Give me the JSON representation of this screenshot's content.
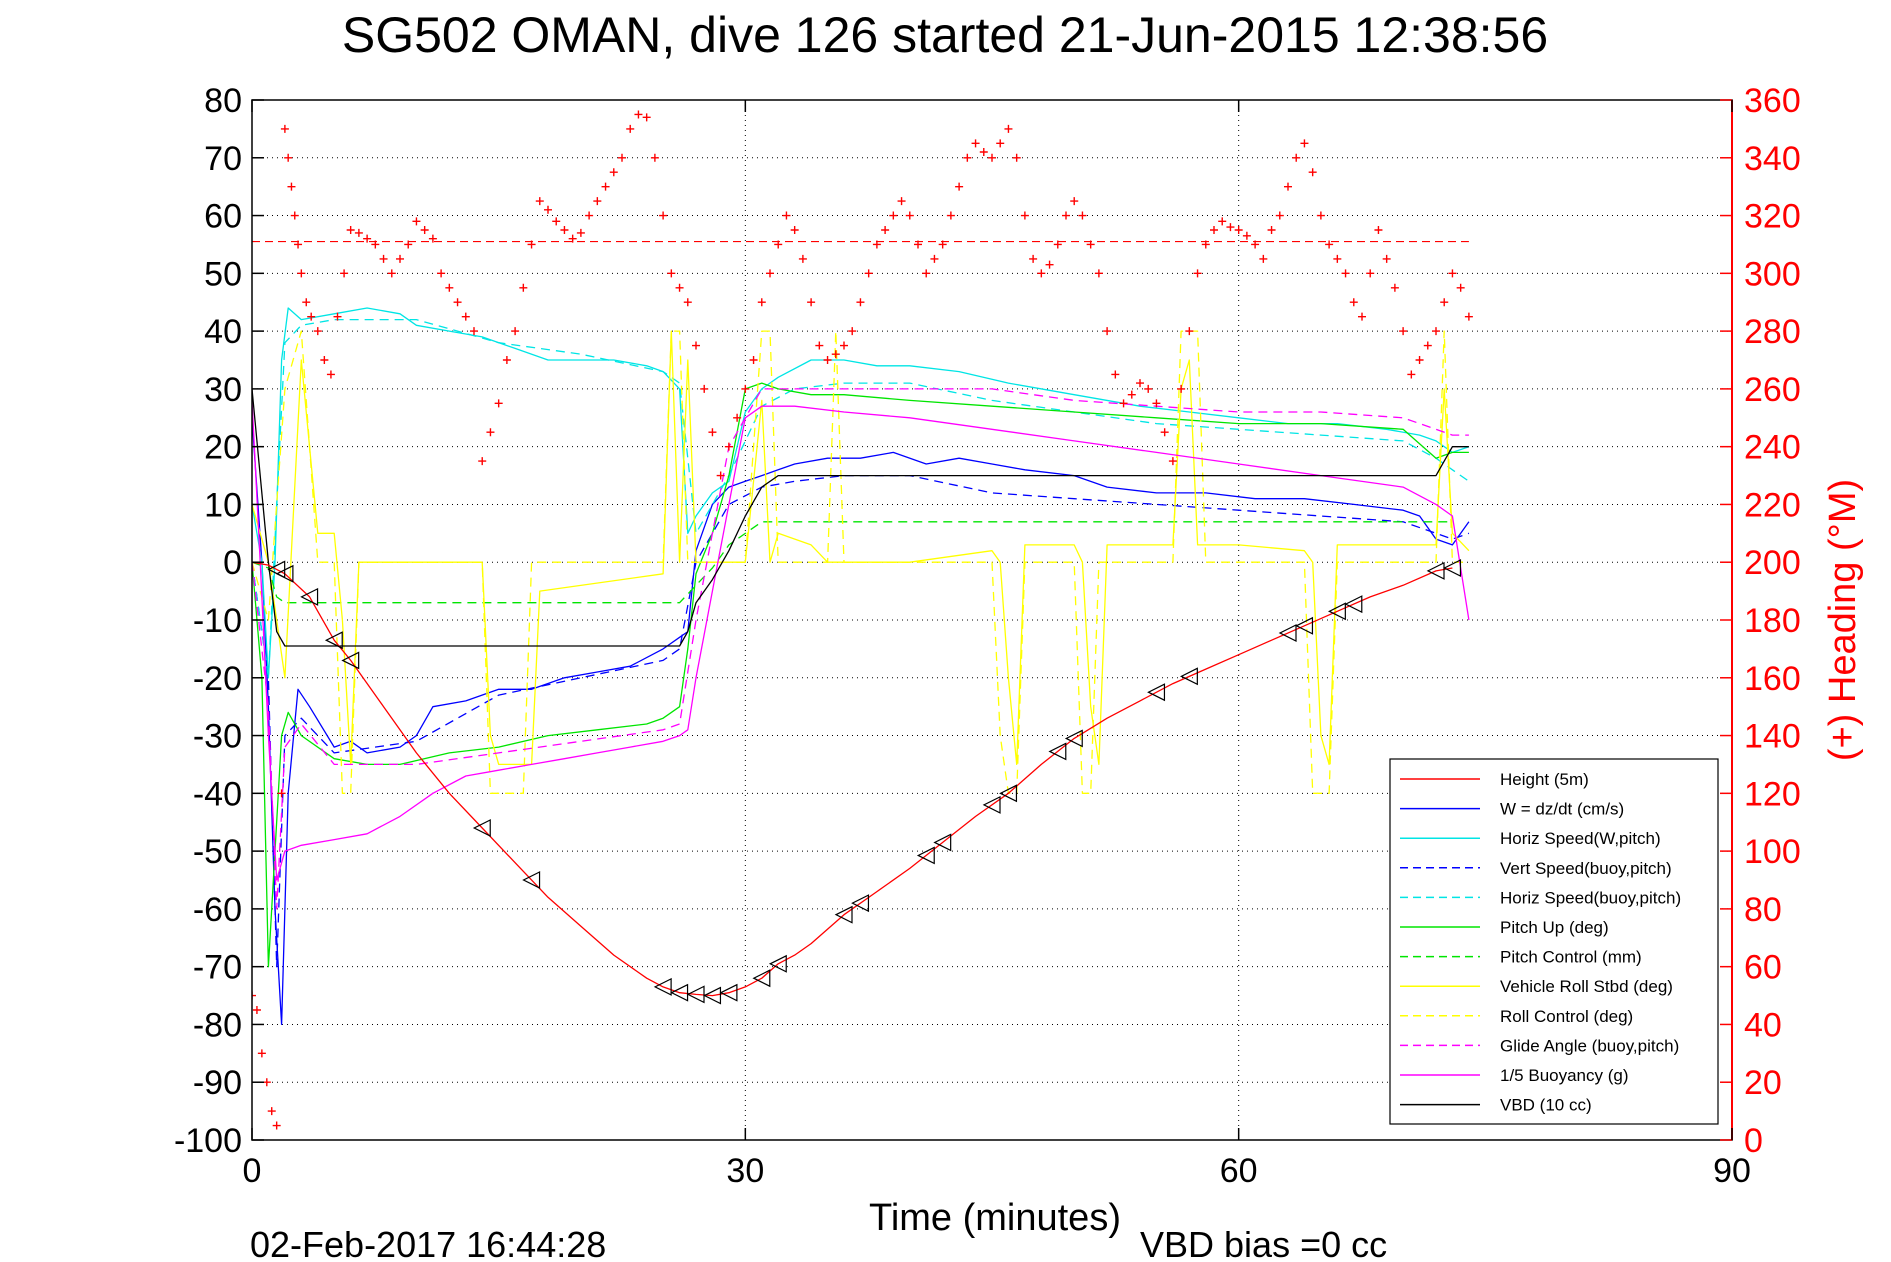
{
  "chart_data": {
    "type": "line",
    "title": "SG502 OMAN, dive 126 started 21-Jun-2015 12:38:56",
    "xlabel": "Time (minutes)",
    "ylabel_right": "(+) Heading (°M)",
    "xlim": [
      0,
      90
    ],
    "ylim": [
      -100,
      80
    ],
    "ylim_right": [
      0,
      360
    ],
    "x_ticks": [
      0,
      30,
      60,
      90
    ],
    "y_ticks": [
      80,
      70,
      60,
      50,
      40,
      30,
      20,
      10,
      0,
      -10,
      -20,
      -30,
      -40,
      -50,
      -60,
      -70,
      -80,
      -90,
      -100
    ],
    "y_ticks_right": [
      360,
      340,
      320,
      300,
      280,
      260,
      240,
      220,
      200,
      180,
      160,
      140,
      120,
      100,
      80,
      60,
      40,
      20,
      0
    ],
    "grid": true,
    "legend_position": "bottom-right",
    "footer_left": "02-Feb-2017 16:44:28",
    "footer_right": "VBD bias =0 cc",
    "heading_reference": 311,
    "series": [
      {
        "name": "Height (5m)",
        "color": "#ff0000",
        "style": "solid",
        "x": [
          0,
          1,
          2,
          3.5,
          5,
          6,
          8,
          10,
          12,
          14,
          16,
          18,
          20,
          22,
          24,
          25,
          26,
          27,
          28,
          29,
          30,
          31,
          32,
          33,
          34,
          36,
          38,
          40,
          42,
          44,
          46,
          48,
          50,
          52,
          54,
          56,
          58,
          60,
          62,
          64,
          66,
          68,
          70,
          72,
          73
        ],
        "values": [
          0,
          -0.5,
          -2,
          -6,
          -13.5,
          -17,
          -25,
          -33,
          -40,
          -46,
          -52,
          -58,
          -63,
          -68,
          -72,
          -73.5,
          -74.5,
          -74.8,
          -75,
          -74.5,
          -73.5,
          -72,
          -69.5,
          -68,
          -66,
          -61,
          -57,
          -53,
          -48.5,
          -44,
          -40,
          -35,
          -30.5,
          -27,
          -24,
          -21,
          -18.5,
          -16,
          -13.5,
          -11,
          -8.5,
          -6,
          -4,
          -1.5,
          -1
        ]
      },
      {
        "name": "W = dz/dt (cm/s)",
        "color": "#0000ff",
        "style": "solid",
        "x": [
          0,
          0.6,
          1.0,
          1.4,
          1.8,
          2.2,
          2.8,
          3.5,
          5,
          6,
          7,
          9,
          10,
          11,
          13,
          15,
          17,
          19,
          21,
          23,
          25,
          26,
          26.5,
          27,
          28,
          29,
          30,
          31,
          32,
          33,
          35,
          37,
          39,
          41,
          43,
          45,
          47,
          50,
          52,
          55,
          58,
          61,
          64,
          67,
          70,
          71,
          72,
          73,
          74
        ],
        "values": [
          25,
          0,
          -25,
          -60,
          -80,
          -40,
          -22,
          -25,
          -32,
          -31,
          -33,
          -32,
          -30,
          -25,
          -24,
          -22,
          -22,
          -20,
          -19,
          -18,
          -15,
          -13,
          -12,
          2,
          10,
          13,
          14,
          15,
          16,
          17,
          18,
          18,
          19,
          17,
          18,
          17,
          16,
          15,
          13,
          12,
          12,
          11,
          11,
          10,
          9,
          8,
          4,
          3,
          7
        ]
      },
      {
        "name": "Horiz Speed(W,pitch)",
        "color": "#00e5e5",
        "style": "solid",
        "x": [
          0,
          0.6,
          1.0,
          1.4,
          1.8,
          2.2,
          3,
          5,
          7,
          9,
          10,
          12,
          14,
          16,
          18,
          20,
          22,
          24,
          25,
          26,
          26.5,
          27,
          28,
          29,
          30,
          31,
          32,
          34,
          36,
          38,
          40,
          43,
          46,
          50,
          54,
          57,
          60,
          63,
          66,
          69,
          71,
          72,
          73,
          74
        ],
        "values": [
          10,
          0,
          -20,
          0,
          35,
          44,
          42,
          43,
          44,
          43,
          41,
          40,
          39,
          37,
          35,
          35,
          35,
          34,
          33,
          30,
          5,
          8,
          12,
          14,
          26,
          30,
          32,
          35,
          35,
          34,
          34,
          33,
          31,
          29,
          27,
          26,
          25,
          24,
          24,
          23,
          22,
          21,
          19,
          20
        ]
      },
      {
        "name": "Vert Speed(buoy,pitch)",
        "color": "#0000ff",
        "style": "dashed",
        "x": [
          0,
          1,
          1.5,
          2,
          3,
          5,
          10,
          15,
          20,
          25,
          26,
          27,
          29,
          31,
          33,
          36,
          40,
          45,
          50,
          55,
          60,
          65,
          70,
          72,
          73,
          74
        ],
        "values": [
          0,
          -20,
          -70,
          -30,
          -27,
          -33,
          -31,
          -23,
          -20,
          -17,
          -15,
          0,
          10,
          13,
          14,
          15,
          15,
          12,
          11,
          10,
          9,
          8,
          7,
          5,
          4,
          5
        ]
      },
      {
        "name": "Horiz Speed(buoy,pitch)",
        "color": "#00e5e5",
        "style": "dashed",
        "x": [
          0,
          1,
          1.5,
          2,
          3,
          5,
          10,
          15,
          20,
          25,
          26,
          27,
          29,
          31,
          33,
          36,
          40,
          45,
          50,
          55,
          60,
          65,
          70,
          72,
          73,
          74
        ],
        "values": [
          0,
          -20,
          10,
          38,
          41,
          42,
          42,
          38,
          36,
          33,
          31,
          5,
          15,
          27,
          30,
          31,
          31,
          28,
          26,
          24,
          23,
          22,
          21,
          18,
          16,
          14
        ]
      },
      {
        "name": "Pitch Up (deg)",
        "color": "#00e500",
        "style": "solid",
        "x": [
          0,
          0.6,
          1.0,
          1.4,
          1.8,
          2.2,
          3,
          5,
          7,
          9,
          12,
          15,
          18,
          21,
          24,
          25,
          26,
          26.5,
          27,
          28,
          29,
          30,
          31,
          32,
          34,
          36,
          40,
          45,
          50,
          55,
          60,
          65,
          70,
          72,
          73,
          74
        ],
        "values": [
          0,
          -20,
          -70,
          -50,
          -30,
          -26,
          -30,
          -34,
          -35,
          -35,
          -33,
          -32,
          -30,
          -29,
          -28,
          -27,
          -25,
          -15,
          -2,
          5,
          15,
          30,
          31,
          30,
          29,
          29,
          28,
          27,
          26,
          25,
          24,
          24,
          23,
          18,
          19,
          19
        ]
      },
      {
        "name": "Pitch Control (mm)",
        "color": "#00e500",
        "style": "dashed",
        "x": [
          0,
          1,
          1.5,
          2,
          3,
          26,
          27,
          28,
          29,
          31,
          32,
          50,
          73
        ],
        "values": [
          0,
          -1,
          -6,
          -7,
          -7,
          -7,
          -4,
          -1,
          3,
          7,
          7,
          7,
          7
        ]
      },
      {
        "name": "Vehicle Roll Stbd (deg)",
        "color": "#ffff00",
        "style": "solid",
        "x": [
          0,
          1,
          2,
          3,
          4,
          5,
          5.5,
          6,
          6.5,
          14,
          14.5,
          15,
          16,
          17,
          17.5,
          25,
          25.5,
          26,
          26.5,
          27,
          28,
          30,
          31,
          31.5,
          32,
          34,
          35,
          36,
          40,
          45,
          45.5,
          46,
          46.5,
          47,
          50,
          50.5,
          51,
          51.5,
          52,
          56,
          56.5,
          57,
          57.5,
          58,
          60,
          64,
          64.5,
          65,
          65.5,
          66,
          70,
          72,
          72.5,
          73,
          74
        ],
        "values": [
          10,
          0,
          -20,
          35,
          5,
          5,
          -10,
          -35,
          0,
          0,
          -30,
          -35,
          -35,
          -35,
          -5,
          -2,
          40,
          0,
          35,
          0,
          0,
          0,
          28,
          0,
          5,
          3,
          0,
          0,
          0,
          2,
          0,
          -20,
          -35,
          3,
          3,
          0,
          -25,
          -35,
          3,
          3,
          30,
          35,
          3,
          3,
          3,
          2,
          0,
          -30,
          -35,
          3,
          3,
          3,
          30,
          5,
          2
        ]
      },
      {
        "name": "Roll Control (deg)",
        "color": "#ffff00",
        "style": "dashed",
        "x": [
          0,
          1,
          2,
          3,
          4,
          5,
          5.5,
          6,
          6.5,
          14,
          14.5,
          15,
          16.5,
          17,
          25,
          25.5,
          26,
          26.5,
          27,
          30,
          31,
          31.5,
          32,
          35,
          35.5,
          36,
          45,
          45.5,
          46,
          46.5,
          47,
          50,
          50.5,
          51,
          51.5,
          52,
          56,
          56.5,
          57,
          57.5,
          58,
          64,
          64.5,
          65,
          65.5,
          66,
          70,
          72,
          72.5,
          73,
          74
        ],
        "values": [
          0,
          -10,
          30,
          40,
          0,
          0,
          -40,
          -40,
          0,
          0,
          -40,
          -40,
          -40,
          0,
          0,
          40,
          40,
          0,
          0,
          0,
          40,
          40,
          0,
          0,
          40,
          0,
          0,
          -30,
          -40,
          -40,
          0,
          0,
          -40,
          -40,
          0,
          0,
          0,
          40,
          40,
          40,
          0,
          0,
          -40,
          -40,
          -40,
          0,
          0,
          0,
          40,
          0,
          0
        ]
      },
      {
        "name": "Glide Angle (buoy,pitch)",
        "color": "#ff00ff",
        "style": "dashed",
        "x": [
          0,
          1,
          1.5,
          2,
          3,
          5,
          10,
          15,
          20,
          25,
          26,
          27,
          28,
          29,
          31,
          33,
          36,
          40,
          45,
          50,
          55,
          60,
          65,
          70,
          72,
          73,
          74
        ],
        "values": [
          0,
          -25,
          -60,
          -32,
          -28,
          -35,
          -35,
          -33,
          -31,
          -29,
          -28,
          -10,
          5,
          20,
          30,
          30,
          30,
          30,
          30,
          28,
          27,
          26,
          26,
          25,
          23,
          22,
          22
        ]
      },
      {
        "name": "1/5 Buoyancy (g)",
        "color": "#ff00ff",
        "style": "solid",
        "x": [
          0,
          0.5,
          1,
          1.5,
          2,
          3,
          5,
          7,
          9,
          11,
          13,
          15,
          17,
          19,
          21,
          23,
          25,
          26,
          26.5,
          27,
          28,
          29,
          30,
          31,
          33,
          36,
          40,
          45,
          50,
          55,
          60,
          65,
          70,
          72,
          73,
          74
        ],
        "values": [
          28,
          0,
          -30,
          -55,
          -50,
          -49,
          -48,
          -47,
          -44,
          -40,
          -37,
          -36,
          -35,
          -34,
          -33,
          -32,
          -31,
          -30,
          -29,
          -20,
          -5,
          10,
          25,
          27,
          27,
          26,
          25,
          23,
          21,
          19,
          17,
          15,
          13,
          10,
          8,
          -10
        ]
      },
      {
        "name": "VBD (10 cc)",
        "color": "#000000",
        "style": "solid",
        "x": [
          0,
          1,
          1.5,
          2,
          10,
          20,
          26,
          26.5,
          27,
          28,
          29,
          30,
          31,
          32,
          40,
          50,
          60,
          70,
          72,
          73,
          74
        ],
        "values": [
          30,
          0,
          -12,
          -14.5,
          -14.5,
          -14.5,
          -14.5,
          -12,
          -7,
          -3,
          2,
          8,
          13,
          15,
          15,
          15,
          15,
          15,
          15,
          20,
          20
        ]
      }
    ],
    "heading_points": {
      "name": "(+) Heading",
      "color": "#ff0000",
      "x": [
        0,
        0.3,
        0.6,
        0.9,
        1.2,
        1.5,
        1.8,
        2.0,
        2.2,
        2.4,
        2.6,
        2.8,
        3.0,
        3.3,
        3.6,
        4.0,
        4.4,
        4.8,
        5.2,
        5.6,
        6.0,
        6.5,
        7.0,
        7.5,
        8.0,
        8.5,
        9.0,
        9.5,
        10.0,
        10.5,
        11.0,
        11.5,
        12.0,
        12.5,
        13.0,
        13.5,
        14.0,
        14.5,
        15.0,
        15.5,
        16.0,
        16.5,
        17.0,
        17.5,
        18.0,
        18.5,
        19.0,
        19.5,
        20.0,
        20.5,
        21.0,
        21.5,
        22.0,
        22.5,
        23.0,
        23.5,
        24.0,
        24.5,
        25.0,
        25.5,
        26.0,
        26.5,
        27.0,
        27.5,
        28.0,
        28.5,
        29.0,
        29.5,
        30.0,
        30.5,
        31.0,
        31.5,
        32.0,
        32.5,
        33.0,
        33.5,
        34.0,
        34.5,
        35.0,
        35.5,
        36.0,
        36.5,
        37.0,
        37.5,
        38.0,
        38.5,
        39.0,
        39.5,
        40.0,
        40.5,
        41.0,
        41.5,
        42.0,
        42.5,
        43.0,
        43.5,
        44.0,
        44.5,
        45.0,
        45.5,
        46.0,
        46.5,
        47.0,
        47.5,
        48.0,
        48.5,
        49.0,
        49.5,
        50.0,
        50.5,
        51.0,
        51.5,
        52.0,
        52.5,
        53.0,
        53.5,
        54.0,
        54.5,
        55.0,
        55.5,
        56.0,
        56.5,
        57.0,
        57.5,
        58.0,
        58.5,
        59.0,
        59.5,
        60.0,
        60.5,
        61.0,
        61.5,
        62.0,
        62.5,
        63.0,
        63.5,
        64.0,
        64.5,
        65.0,
        65.5,
        66.0,
        66.5,
        67.0,
        67.5,
        68.0,
        68.5,
        69.0,
        69.5,
        70.0,
        70.5,
        71.0,
        71.5,
        72.0,
        72.5,
        73.0,
        73.5,
        74.0
      ],
      "values": [
        50,
        45,
        30,
        20,
        10,
        5,
        120,
        350,
        340,
        330,
        320,
        310,
        300,
        290,
        285,
        280,
        270,
        265,
        285,
        300,
        315,
        314,
        312,
        310,
        305,
        300,
        305,
        310,
        318,
        315,
        312,
        300,
        295,
        290,
        285,
        280,
        235,
        245,
        255,
        270,
        280,
        295,
        310,
        325,
        322,
        318,
        315,
        312,
        314,
        320,
        325,
        330,
        335,
        340,
        350,
        355,
        354,
        340,
        320,
        300,
        295,
        290,
        275,
        260,
        245,
        230,
        240,
        250,
        260,
        270,
        290,
        300,
        310,
        320,
        315,
        305,
        290,
        275,
        270,
        272,
        275,
        280,
        290,
        300,
        310,
        315,
        320,
        325,
        320,
        310,
        300,
        305,
        310,
        320,
        330,
        340,
        345,
        342,
        340,
        345,
        350,
        340,
        320,
        305,
        300,
        303,
        310,
        320,
        325,
        320,
        310,
        300,
        280,
        265,
        255,
        258,
        262,
        260,
        255,
        245,
        235,
        260,
        280,
        300,
        310,
        315,
        318,
        316,
        315,
        313,
        310,
        305,
        315,
        320,
        330,
        340,
        345,
        335,
        320,
        310,
        305,
        300,
        290,
        285,
        300,
        315,
        305,
        295,
        280,
        265,
        270,
        275,
        280,
        290,
        300,
        295,
        285
      ]
    }
  }
}
